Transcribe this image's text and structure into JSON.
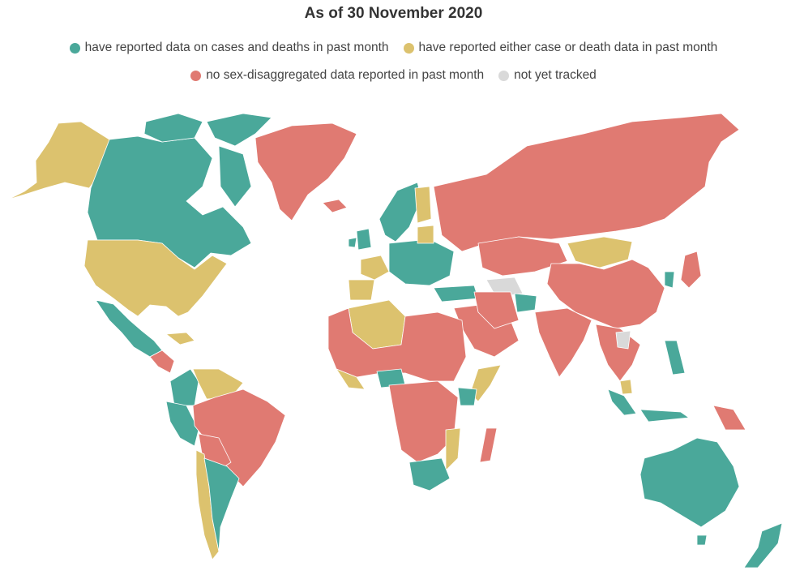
{
  "title": "As of 30 November 2020",
  "legend": [
    {
      "label": "have reported data on cases and deaths in past month",
      "color": "#4aa89a"
    },
    {
      "label": "have reported either case or death data in past month",
      "color": "#dcc26e"
    },
    {
      "label": "no sex-disaggregated data reported in past month",
      "color": "#e07a72"
    },
    {
      "label": "not yet tracked",
      "color": "#d9d9d9"
    }
  ],
  "colors": {
    "green": "#4aa89a",
    "yellow": "#dcc26e",
    "red": "#e07a72",
    "grey": "#d9d9d9"
  }
}
